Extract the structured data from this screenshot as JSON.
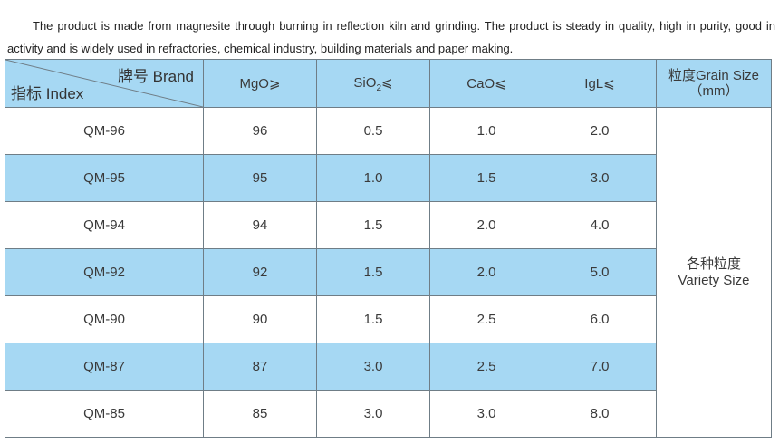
{
  "intro": "The product is made from magnesite through burning in reflection kiln and grinding. The product is steady in quality, high in purity, good in activity and is widely used in refractories, chemical industry, building materials and paper making.",
  "table": {
    "corner_top": "牌号 Brand",
    "corner_bottom": "指标 Index",
    "headers": {
      "mgo": "MgO⩾",
      "sio2_main": "SiO",
      "sio2_sub": "2",
      "sio2_sym": "⩽",
      "cao": "CaO⩽",
      "igl": "IgL⩽",
      "grain_line1": "粒度Grain Size",
      "grain_line2": "（mm）"
    },
    "rows": [
      {
        "brand": "QM-96",
        "mgo": "96",
        "sio2": "0.5",
        "cao": "1.0",
        "igl": "2.0"
      },
      {
        "brand": "QM-95",
        "mgo": "95",
        "sio2": "1.0",
        "cao": "1.5",
        "igl": "3.0"
      },
      {
        "brand": "QM-94",
        "mgo": "94",
        "sio2": "1.5",
        "cao": "2.0",
        "igl": "4.0"
      },
      {
        "brand": "QM-92",
        "mgo": "92",
        "sio2": "1.5",
        "cao": "2.0",
        "igl": "5.0"
      },
      {
        "brand": "QM-90",
        "mgo": "90",
        "sio2": "1.5",
        "cao": "2.5",
        "igl": "6.0"
      },
      {
        "brand": "QM-87",
        "mgo": "87",
        "sio2": "3.0",
        "cao": "2.5",
        "igl": "7.0"
      },
      {
        "brand": "QM-85",
        "mgo": "85",
        "sio2": "3.0",
        "cao": "3.0",
        "igl": "8.0"
      }
    ],
    "grain_value_line1": "各种粒度",
    "grain_value_line2": "Variety Size"
  },
  "colors": {
    "header_bg": "#a6d8f3",
    "alt_row_bg": "#a6d8f3",
    "border": "#6f7d86"
  }
}
